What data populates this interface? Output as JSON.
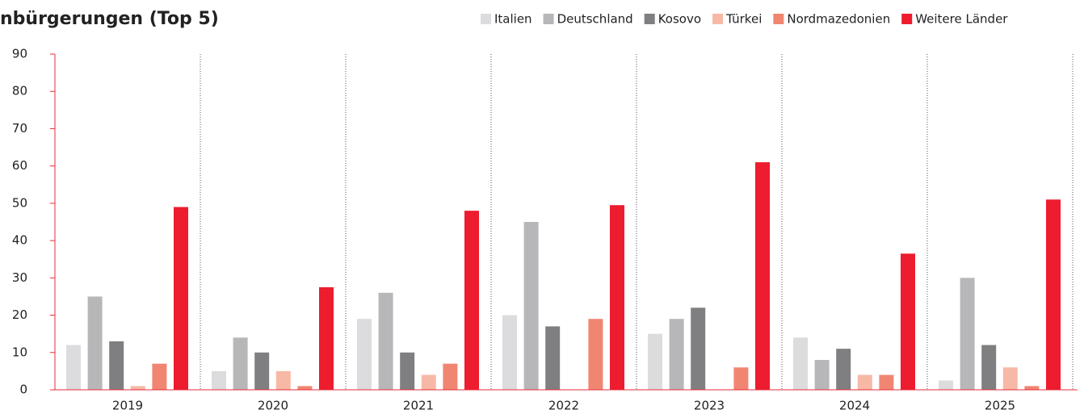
{
  "chart_data": {
    "type": "bar",
    "title": "nbürgerungen (Top 5)",
    "categories": [
      "2019",
      "2020",
      "2021",
      "2022",
      "2023",
      "2024",
      "2025"
    ],
    "series": [
      {
        "name": "Italien",
        "color": "#dcdcde",
        "values": [
          12,
          5,
          19,
          20,
          15,
          14,
          2.5
        ]
      },
      {
        "name": "Deutschland",
        "color": "#b7b7ba",
        "values": [
          25,
          14,
          26,
          45,
          19,
          8,
          30
        ]
      },
      {
        "name": "Kosovo",
        "color": "#7f7f82",
        "values": [
          13,
          10,
          10,
          17,
          22,
          11,
          12
        ]
      },
      {
        "name": "Türkei",
        "color": "#f7b9a6",
        "values": [
          1,
          5,
          4,
          0,
          0,
          4,
          6
        ]
      },
      {
        "name": "Nordmazedonien",
        "color": "#f08672",
        "values": [
          7,
          1,
          7,
          19,
          6,
          4,
          1
        ]
      },
      {
        "name": "Weitere Länder",
        "color": "#ed1c2e",
        "values": [
          49,
          27.5,
          48,
          49.5,
          61,
          36.5,
          51
        ]
      }
    ],
    "ylim": [
      0,
      90
    ],
    "yticks": [
      0,
      10,
      20,
      30,
      40,
      50,
      60,
      70,
      80,
      90
    ],
    "legend": "top-right"
  }
}
